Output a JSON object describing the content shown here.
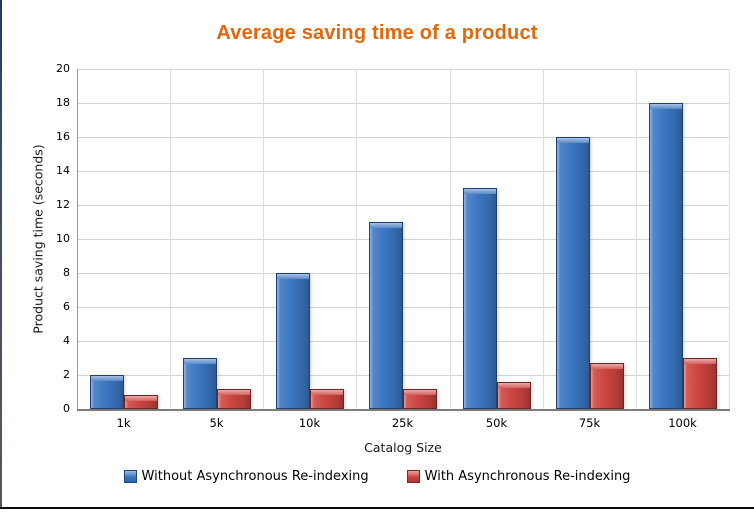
{
  "window": {
    "left_border_color": "#1E3A5F",
    "bottom_line_color": "#0A0A0A",
    "background": "#FFFFFF"
  },
  "chart_data": {
    "type": "bar",
    "title": "Average saving time of a product",
    "title_color": "#E2670D",
    "categories": [
      "1k",
      "5k",
      "10k",
      "25k",
      "50k",
      "75k",
      "100k"
    ],
    "series": [
      {
        "name": "Without Asynchronous Re-indexing",
        "color": "#3B76C2",
        "values": [
          2,
          3,
          8,
          11,
          13,
          16,
          18
        ]
      },
      {
        "name": "With Asynchronous Re-indexing",
        "color": "#CC4440",
        "values": [
          0.8,
          1.2,
          1.2,
          1.2,
          1.6,
          2.7,
          3
        ]
      }
    ],
    "xlabel": "Catalog Size",
    "ylabel": "Product saving time (seconds)",
    "ylim": [
      0,
      20
    ],
    "ytick_step": 2,
    "yticks": [
      "0",
      "2",
      "4",
      "6",
      "8",
      "10",
      "12",
      "14",
      "16",
      "18",
      "20"
    ],
    "grid": true,
    "gridline_color": "#D4D4D4",
    "axis_color": "#8A8A8A",
    "legend_position": "bottom"
  }
}
